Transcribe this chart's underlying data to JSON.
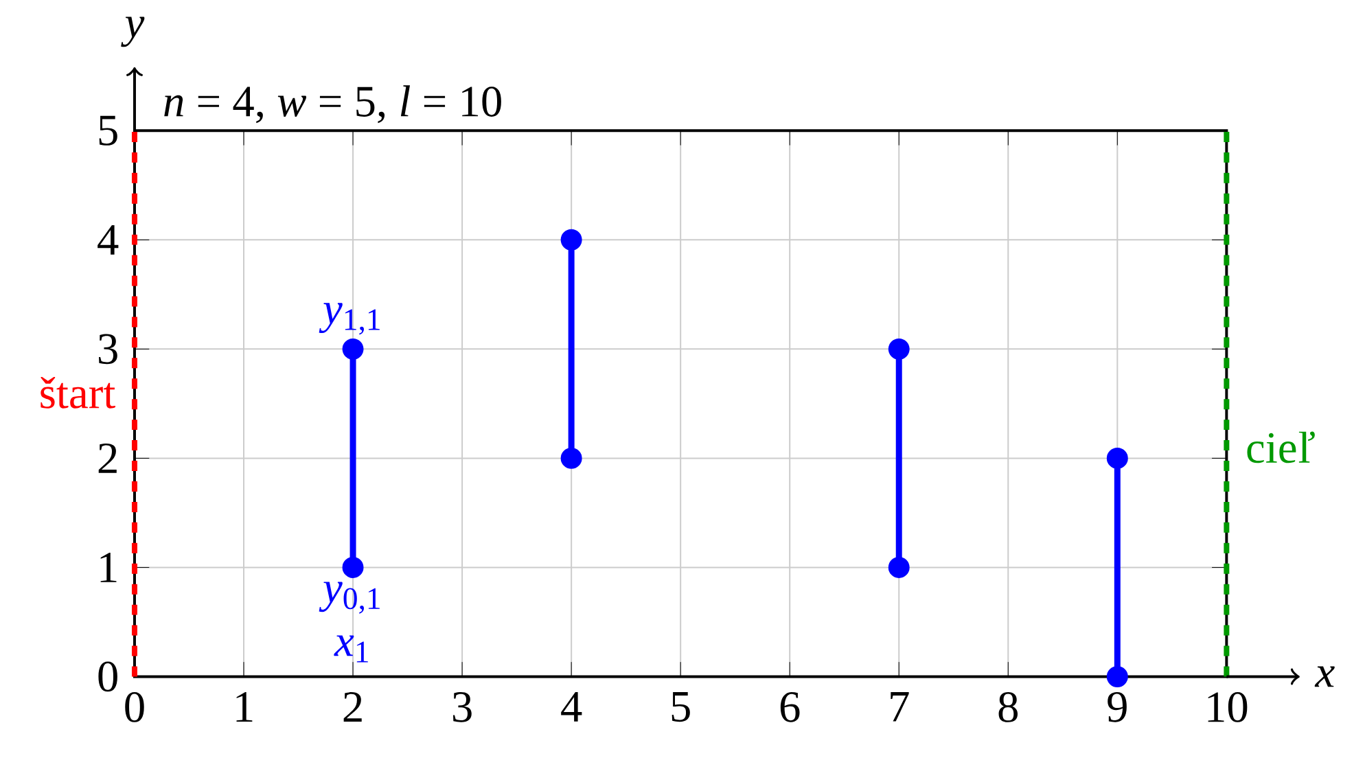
{
  "chart_data": {
    "type": "line",
    "title": "*n* = 4, *w* = 5, *l* = 10",
    "xlabel": "x",
    "ylabel": "y",
    "xlim": [
      0,
      10
    ],
    "ylim": [
      0,
      5
    ],
    "xticks": [
      0,
      1,
      2,
      3,
      4,
      5,
      6,
      7,
      8,
      9,
      10
    ],
    "yticks": [
      0,
      1,
      2,
      3,
      4,
      5
    ],
    "grid": true,
    "marker": "circle",
    "line_style": "solid",
    "series": [
      {
        "color": "#0000ff",
        "x": [
          2,
          2
        ],
        "values": [
          1,
          3
        ]
      },
      {
        "color": "#0000ff",
        "x": [
          4,
          4
        ],
        "values": [
          2,
          4
        ]
      },
      {
        "color": "#0000ff",
        "x": [
          7,
          7
        ],
        "values": [
          1,
          3
        ]
      },
      {
        "color": "#0000ff",
        "x": [
          9,
          9
        ],
        "values": [
          0,
          2
        ]
      }
    ],
    "ref_lines": [
      {
        "axis": "x",
        "value": 0,
        "label": "štart",
        "color": "#ff0000",
        "line_style": "dashed"
      },
      {
        "axis": "x",
        "value": 10,
        "label": "cieľ",
        "color": "#009900",
        "line_style": "dashed"
      }
    ],
    "annotations": [
      {
        "text": "*y*$_{1,1}$",
        "x": 2,
        "y": 3
      },
      {
        "text": "*y*$_{0,1}$",
        "x": 2,
        "y": 1
      },
      "*x*$_{1}$"
    ]
  }
}
